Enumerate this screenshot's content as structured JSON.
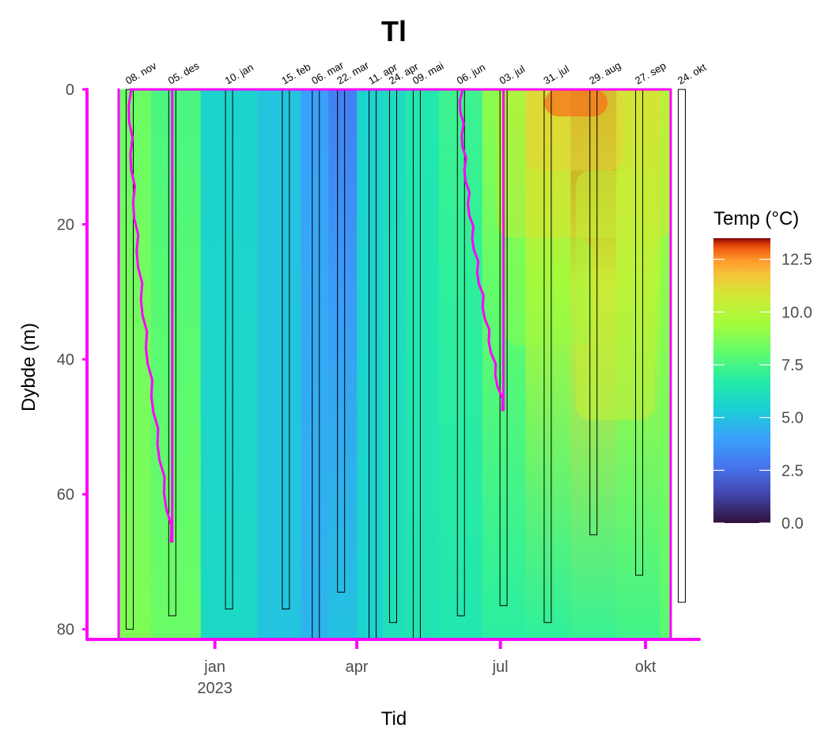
{
  "chart_data": {
    "type": "heatmap",
    "title": "Tl",
    "xlabel": "Tid",
    "ylabel": "Dybde (m)",
    "ylim": [
      0,
      81.5
    ],
    "y_ticks": [
      "0",
      "20",
      "40",
      "60",
      "80"
    ],
    "y_tick_values": [
      0,
      20,
      40,
      60,
      80
    ],
    "x_ticks": [
      {
        "label": "jan",
        "sub": "2023",
        "day": 61
      },
      {
        "label": "apr",
        "sub": "",
        "day": 151
      },
      {
        "label": "jul",
        "sub": "",
        "day": 242
      },
      {
        "label": "okt",
        "sub": "",
        "day": 334
      }
    ],
    "xlim_days": [
      -5,
      375
    ],
    "colorbar": {
      "title": "Temp (°C)",
      "min": 0,
      "max": 13.5,
      "ticks": [
        "0.0",
        "2.5",
        "5.0",
        "7.5",
        "10.0",
        "12.5"
      ],
      "tick_values": [
        0,
        2.5,
        5,
        7.5,
        10,
        12.5
      ]
    },
    "sampling_dates": [
      {
        "label": "08. nov",
        "day": 7,
        "max_depth": 80
      },
      {
        "label": "05. des",
        "day": 34,
        "max_depth": 78
      },
      {
        "label": "10. jan",
        "day": 70,
        "max_depth": 77
      },
      {
        "label": "15. feb",
        "day": 106,
        "max_depth": 77
      },
      {
        "label": "06. mar",
        "day": 125,
        "max_depth": 81.5
      },
      {
        "label": "22. mar",
        "day": 141,
        "max_depth": 74.5
      },
      {
        "label": "11. apr",
        "day": 161,
        "max_depth": 81.5
      },
      {
        "label": "24. apr",
        "day": 174,
        "max_depth": 79
      },
      {
        "label": "09. mai",
        "day": 189,
        "max_depth": 81.5
      },
      {
        "label": "06. jun",
        "day": 217,
        "max_depth": 78
      },
      {
        "label": "03. jul",
        "day": 244,
        "max_depth": 76.5
      },
      {
        "label": "31. jul",
        "day": 272,
        "max_depth": 79
      },
      {
        "label": "29. aug",
        "day": 301,
        "max_depth": 66
      },
      {
        "label": "27. sep",
        "day": 330,
        "max_depth": 72
      },
      {
        "label": "24. okt",
        "day": 357,
        "max_depth": 76
      }
    ],
    "temperature_profiles": [
      {
        "day": 7,
        "surface": 8.3,
        "bottom": 8.7
      },
      {
        "day": 34,
        "surface": 7.6,
        "bottom": 8.3
      },
      {
        "day": 70,
        "surface": 5.6,
        "bottom": 5.8
      },
      {
        "day": 106,
        "surface": 5.1,
        "bottom": 5.1
      },
      {
        "day": 125,
        "surface": 4.0,
        "bottom": 4.6
      },
      {
        "day": 141,
        "surface": 3.0,
        "bottom": 5.0
      },
      {
        "day": 161,
        "surface": 5.6,
        "bottom": 5.6
      },
      {
        "day": 174,
        "surface": 5.9,
        "bottom": 6.2
      },
      {
        "day": 189,
        "surface": 6.5,
        "bottom": 6.4
      },
      {
        "day": 217,
        "surface": 7.3,
        "bottom": 6.5
      },
      {
        "day": 244,
        "surface": 9.0,
        "bottom": 6.9
      },
      {
        "day": 272,
        "surface": 11.5,
        "bottom": 7.0
      },
      {
        "day": 301,
        "surface": 13.3,
        "bottom": 7.2
      },
      {
        "day": 330,
        "surface": 11.2,
        "bottom": 7.4
      },
      {
        "day": 357,
        "surface": 9.6,
        "bottom": 8.0
      }
    ],
    "magenta_profiles": [
      {
        "day_start": 7,
        "day_end": 34,
        "depth_end": 67
      },
      {
        "day_start": 217,
        "day_end": 244,
        "depth_end": 47.5
      }
    ]
  }
}
